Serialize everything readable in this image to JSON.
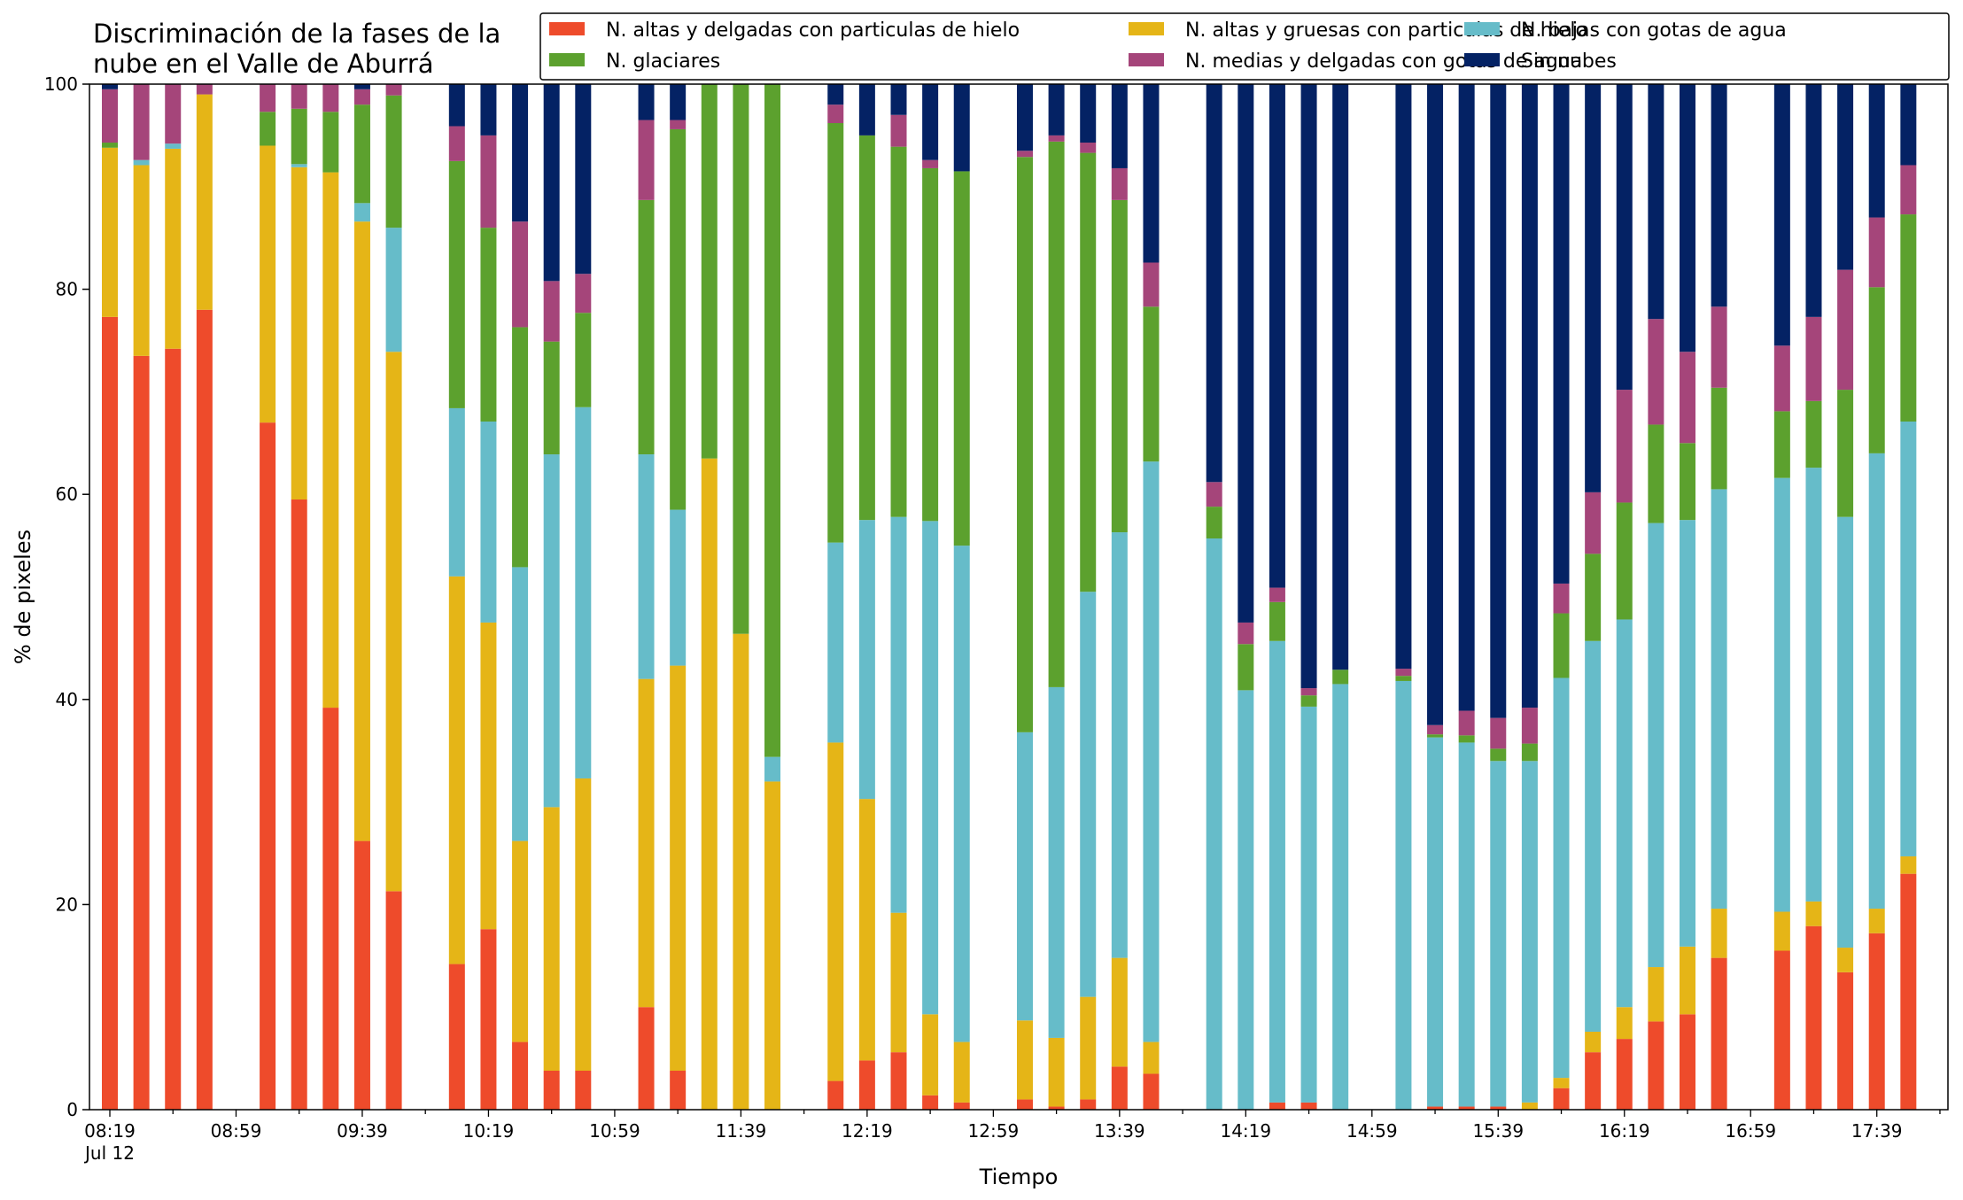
{
  "chart_data": {
    "type": "bar",
    "stacked": true,
    "title_lines": [
      "Discriminación de la fases de la",
      "nube en el Valle de Aburrá"
    ],
    "xlabel": "Tiempo",
    "ylabel": "% de pixeles",
    "ylim": [
      0,
      100
    ],
    "y_ticks": [
      0,
      20,
      40,
      60,
      80,
      100
    ],
    "x_tick_labels": [
      "08:19",
      "08:59",
      "09:39",
      "10:19",
      "10:59",
      "11:39",
      "12:19",
      "12:59",
      "13:39",
      "14:19",
      "14:59",
      "15:39",
      "16:19",
      "16:59",
      "17:39"
    ],
    "x_date_label": "Jul 12",
    "grid": false,
    "legend": {
      "placement": "top",
      "columns": 3,
      "order": [
        0,
        1,
        2,
        3,
        4,
        5
      ]
    },
    "series": [
      {
        "name": "N. altas y delgadas con particulas de hielo",
        "color": "#ee4b2b"
      },
      {
        "name": "N. altas y gruesas con particulas de hielo",
        "color": "#e5b517"
      },
      {
        "name": "N. bajas con gotas de agua",
        "color": "#66bcc9"
      },
      {
        "name": "N. glaciares",
        "color": "#5ca12e"
      },
      {
        "name": "N. medias y delgadas con gotas de agua",
        "color": "#a5457a"
      },
      {
        "name": "Sin nubes",
        "color": "#042264"
      }
    ],
    "bars": [
      {
        "slot": 0,
        "v": [
          77.3,
          16.5,
          0,
          0.5,
          5.2,
          0.5
        ]
      },
      {
        "slot": 1,
        "v": [
          73.5,
          18.6,
          0.5,
          0,
          7.4,
          0
        ]
      },
      {
        "slot": 2,
        "v": [
          74.2,
          19.5,
          0.5,
          0,
          5.8,
          0
        ]
      },
      {
        "slot": 3,
        "v": [
          78.0,
          21.0,
          0,
          0,
          1.0,
          0
        ]
      },
      {
        "slot": 5,
        "v": [
          67.0,
          27.0,
          0,
          3.3,
          2.7,
          0
        ]
      },
      {
        "slot": 6,
        "v": [
          59.5,
          32.4,
          0.3,
          5.4,
          2.4,
          0
        ]
      },
      {
        "slot": 7,
        "v": [
          39.2,
          52.2,
          0,
          5.9,
          2.7,
          0
        ]
      },
      {
        "slot": 8,
        "v": [
          26.2,
          60.4,
          1.8,
          9.6,
          1.5,
          0.5
        ]
      },
      {
        "slot": 9,
        "v": [
          21.3,
          52.6,
          12.1,
          12.9,
          1.1,
          0
        ]
      },
      {
        "slot": 11,
        "v": [
          14.2,
          37.8,
          16.4,
          24.1,
          3.4,
          4.1
        ]
      },
      {
        "slot": 12,
        "v": [
          17.6,
          29.9,
          19.6,
          18.9,
          9.0,
          5.0
        ]
      },
      {
        "slot": 13,
        "v": [
          6.6,
          19.6,
          26.7,
          23.4,
          10.3,
          13.4
        ]
      },
      {
        "slot": 14,
        "v": [
          3.8,
          25.7,
          34.4,
          11.0,
          5.9,
          19.2
        ]
      },
      {
        "slot": 15,
        "v": [
          3.8,
          28.5,
          36.2,
          9.2,
          3.8,
          18.5
        ]
      },
      {
        "slot": 17,
        "v": [
          10.0,
          32.0,
          21.9,
          24.8,
          7.8,
          3.5
        ]
      },
      {
        "slot": 18,
        "v": [
          3.8,
          39.5,
          15.2,
          37.1,
          0.9,
          3.5
        ]
      },
      {
        "slot": 19,
        "v": [
          0,
          63.5,
          0,
          36.5,
          0,
          0
        ]
      },
      {
        "slot": 20,
        "v": [
          0,
          46.4,
          0,
          53.6,
          0,
          0
        ]
      },
      {
        "slot": 21,
        "v": [
          0,
          32.0,
          2.4,
          65.6,
          0,
          0
        ]
      },
      {
        "slot": 23,
        "v": [
          2.8,
          33.0,
          19.5,
          40.9,
          1.8,
          2.0
        ]
      },
      {
        "slot": 24,
        "v": [
          4.8,
          25.5,
          27.2,
          37.5,
          0,
          5.0
        ]
      },
      {
        "slot": 25,
        "v": [
          5.6,
          13.6,
          38.6,
          36.1,
          3.1,
          3.0
        ]
      },
      {
        "slot": 26,
        "v": [
          1.4,
          7.9,
          48.1,
          34.4,
          0.8,
          7.4
        ]
      },
      {
        "slot": 27,
        "v": [
          0.7,
          5.9,
          48.4,
          36.5,
          0,
          8.5
        ]
      },
      {
        "slot": 29,
        "v": [
          1.0,
          7.7,
          28.1,
          56.1,
          0.6,
          6.5
        ]
      },
      {
        "slot": 30,
        "v": [
          0.3,
          6.7,
          34.2,
          53.2,
          0.6,
          5.0
        ]
      },
      {
        "slot": 31,
        "v": [
          1.0,
          10.0,
          39.5,
          42.8,
          1.0,
          5.7
        ]
      },
      {
        "slot": 32,
        "v": [
          4.2,
          10.6,
          41.5,
          32.4,
          3.1,
          8.2
        ]
      },
      {
        "slot": 33,
        "v": [
          3.5,
          3.1,
          56.6,
          15.1,
          4.3,
          17.4
        ]
      },
      {
        "slot": 35,
        "v": [
          0,
          0,
          55.7,
          3.1,
          2.4,
          38.8
        ]
      },
      {
        "slot": 36,
        "v": [
          0,
          0,
          40.9,
          4.5,
          2.1,
          52.5
        ]
      },
      {
        "slot": 37,
        "v": [
          0.7,
          0,
          45.0,
          3.8,
          1.4,
          49.1
        ]
      },
      {
        "slot": 38,
        "v": [
          0.7,
          0,
          38.6,
          1.1,
          0.7,
          58.9
        ]
      },
      {
        "slot": 39,
        "v": [
          0,
          0,
          41.5,
          1.4,
          0,
          57.1
        ]
      },
      {
        "slot": 41,
        "v": [
          0,
          0,
          41.8,
          0.5,
          0.7,
          57.0
        ]
      },
      {
        "slot": 42,
        "v": [
          0.3,
          0,
          36.0,
          0.3,
          0.9,
          62.5
        ]
      },
      {
        "slot": 43,
        "v": [
          0.3,
          0,
          35.5,
          0.7,
          2.4,
          61.1
        ]
      },
      {
        "slot": 44,
        "v": [
          0.3,
          0,
          33.7,
          1.2,
          3.0,
          61.8
        ]
      },
      {
        "slot": 45,
        "v": [
          0,
          0.7,
          33.3,
          1.7,
          3.5,
          60.8
        ]
      },
      {
        "slot": 46,
        "v": [
          2.1,
          1.0,
          39.0,
          6.3,
          2.9,
          48.7
        ]
      },
      {
        "slot": 47,
        "v": [
          5.6,
          2.0,
          38.1,
          8.5,
          6.0,
          39.8
        ]
      },
      {
        "slot": 48,
        "v": [
          6.9,
          3.1,
          37.8,
          11.4,
          11.0,
          29.8
        ]
      },
      {
        "slot": 49,
        "v": [
          8.6,
          5.3,
          43.3,
          9.6,
          10.3,
          22.9
        ]
      },
      {
        "slot": 50,
        "v": [
          9.3,
          6.6,
          41.6,
          7.5,
          8.9,
          26.1
        ]
      },
      {
        "slot": 51,
        "v": [
          14.8,
          4.8,
          40.9,
          9.9,
          7.9,
          21.7
        ]
      },
      {
        "slot": 53,
        "v": [
          15.5,
          3.8,
          42.3,
          6.5,
          6.4,
          25.5
        ]
      },
      {
        "slot": 54,
        "v": [
          17.9,
          2.4,
          42.3,
          6.5,
          8.2,
          22.7
        ]
      },
      {
        "slot": 55,
        "v": [
          13.4,
          2.4,
          42.0,
          12.4,
          11.7,
          18.1
        ]
      },
      {
        "slot": 56,
        "v": [
          17.2,
          2.4,
          44.4,
          16.2,
          6.8,
          13.0
        ]
      },
      {
        "slot": 57,
        "v": [
          23.0,
          1.7,
          42.4,
          20.2,
          4.8,
          7.9
        ]
      }
    ]
  }
}
